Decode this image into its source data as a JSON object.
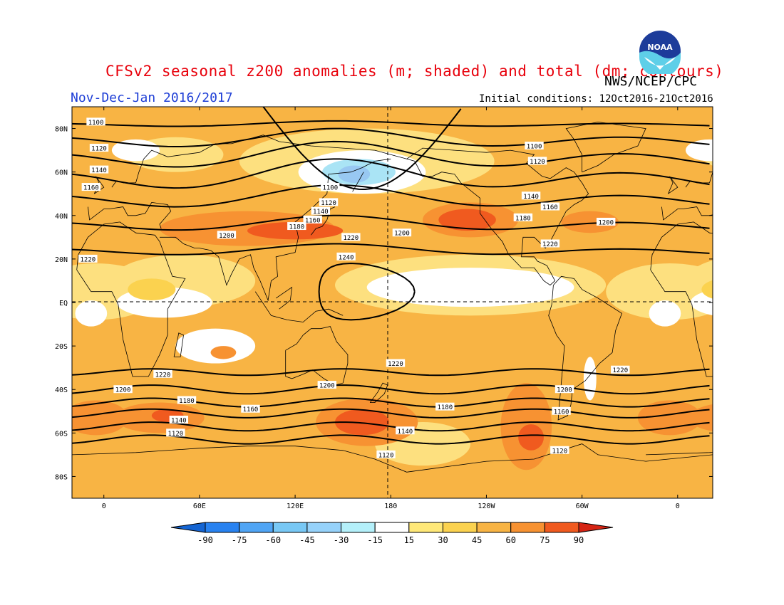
{
  "header": {
    "title": "CFSv2 seasonal z200 anomalies (m; shaded) and total (dm; contours)",
    "agency": "NWS/NCEP/CPC",
    "period": "Nov-Dec-Jan 2016/2017",
    "initial_conditions": "Initial conditions: 12Oct2016-21Oct2016"
  },
  "logo": {
    "text": "NOAA"
  },
  "axes": {
    "lat_ticks": [
      "80N",
      "60N",
      "40N",
      "20N",
      "EQ",
      "20S",
      "40S",
      "60S",
      "80S"
    ],
    "lon_ticks": [
      "0",
      "60E",
      "120E",
      "180",
      "120W",
      "60W",
      "0"
    ]
  },
  "contours": {
    "nh": [
      {
        "value": "1100",
        "lat": 82,
        "amp": 1.5,
        "phase": 0
      },
      {
        "value": "1120",
        "lat": 75,
        "amp": 5,
        "phase": 0
      },
      {
        "value": "1140",
        "lat": 67,
        "amp": 7,
        "phase": 0
      },
      {
        "value": "1160",
        "lat": 58,
        "amp": 8,
        "phase": 0
      },
      {
        "value": "1180",
        "lat": 48,
        "amp": 6,
        "phase": 0
      },
      {
        "value": "1200",
        "lat": 36,
        "amp": 4,
        "phase": 0
      },
      {
        "value": "1220",
        "lat": 24,
        "amp": 3,
        "phase": 0
      }
    ],
    "sh": [
      {
        "value": "1220",
        "lat": -32,
        "amp": 1.5
      },
      {
        "value": "1200",
        "lat": -40,
        "amp": 2
      },
      {
        "value": "1180",
        "lat": -46,
        "amp": 2
      },
      {
        "value": "1160",
        "lat": -51,
        "amp": 2
      },
      {
        "value": "1140",
        "lat": -57,
        "amp": 2
      },
      {
        "value": "1120",
        "lat": -63,
        "amp": 2
      }
    ],
    "closed": [
      {
        "value": "1240",
        "center_lon": 160,
        "center_lat": 5
      }
    ],
    "labels": [
      {
        "text": "1100",
        "lon": -5,
        "lat": 83
      },
      {
        "text": "1120",
        "lon": -3,
        "lat": 71
      },
      {
        "text": "1140",
        "lon": -3,
        "lat": 61
      },
      {
        "text": "1160",
        "lon": -8,
        "lat": 53
      },
      {
        "text": "1220",
        "lon": -10,
        "lat": 20
      },
      {
        "text": "1100",
        "lon": 142,
        "lat": 53
      },
      {
        "text": "1120",
        "lon": 141,
        "lat": 46
      },
      {
        "text": "1140",
        "lon": 136,
        "lat": 42
      },
      {
        "text": "1160",
        "lon": 131,
        "lat": 38
      },
      {
        "text": "1180",
        "lon": 121,
        "lat": 35
      },
      {
        "text": "1200",
        "lon": 77,
        "lat": 31
      },
      {
        "text": "1220",
        "lon": 155,
        "lat": 30
      },
      {
        "text": "1200",
        "lon": 187,
        "lat": 32
      },
      {
        "text": "1240",
        "lon": 152,
        "lat": 21
      },
      {
        "text": "1100",
        "lon": 270,
        "lat": 72
      },
      {
        "text": "1120",
        "lon": 272,
        "lat": 65
      },
      {
        "text": "1140",
        "lon": 268,
        "lat": 49
      },
      {
        "text": "1160",
        "lon": 280,
        "lat": 44
      },
      {
        "text": "1180",
        "lon": 263,
        "lat": 39
      },
      {
        "text": "1200",
        "lon": 315,
        "lat": 37
      },
      {
        "text": "1220",
        "lon": 280,
        "lat": 27
      },
      {
        "text": "1220",
        "lon": 183,
        "lat": -28
      },
      {
        "text": "1220",
        "lon": 324,
        "lat": -31
      },
      {
        "text": "1220",
        "lon": 37,
        "lat": -33
      },
      {
        "text": "1200",
        "lon": 12,
        "lat": -40
      },
      {
        "text": "1200",
        "lon": 140,
        "lat": -38
      },
      {
        "text": "1200",
        "lon": 289,
        "lat": -40
      },
      {
        "text": "1180",
        "lon": 52,
        "lat": -45
      },
      {
        "text": "1180",
        "lon": 214,
        "lat": -48
      },
      {
        "text": "1160",
        "lon": 92,
        "lat": -49
      },
      {
        "text": "1160",
        "lon": 287,
        "lat": -50
      },
      {
        "text": "1140",
        "lon": 47,
        "lat": -54
      },
      {
        "text": "1140",
        "lon": 189,
        "lat": -59
      },
      {
        "text": "1120",
        "lon": 45,
        "lat": -60
      },
      {
        "text": "1120",
        "lon": 177,
        "lat": -70
      },
      {
        "text": "1120",
        "lon": 286,
        "lat": -68
      }
    ]
  },
  "shading": {
    "background": "#f8b444",
    "regions": [
      {
        "level": 15,
        "color": "#fde07f",
        "lon": 50,
        "lat": 10,
        "rx": 45,
        "ry": 12
      },
      {
        "level": 15,
        "color": "#fde07f",
        "lon": 230,
        "lat": 8,
        "rx": 85,
        "ry": 14
      },
      {
        "level": 15,
        "color": "#fde07f",
        "lon": 165,
        "lat": 65,
        "rx": 80,
        "ry": 15
      },
      {
        "level": 15,
        "color": "#fde07f",
        "lon": 355,
        "lat": 5,
        "rx": 40,
        "ry": 13
      },
      {
        "level": 15,
        "color": "#fde07f",
        "lon": 200,
        "lat": -65,
        "rx": 30,
        "ry": 10
      },
      {
        "level": 15,
        "color": "#fde07f",
        "lon": 45,
        "lat": 68,
        "rx": 30,
        "ry": 8
      },
      {
        "level": 0,
        "color": "#ffffff",
        "lon": 38,
        "lat": 0,
        "rx": 30,
        "ry": 7
      },
      {
        "level": 0,
        "color": "#ffffff",
        "lon": 70,
        "lat": -20,
        "rx": 25,
        "ry": 8
      },
      {
        "level": 0,
        "color": "#ffffff",
        "lon": 230,
        "lat": 7,
        "rx": 65,
        "ry": 9
      },
      {
        "level": 0,
        "color": "#ffffff",
        "lon": 162,
        "lat": 60,
        "rx": 40,
        "ry": 10
      },
      {
        "level": 0,
        "color": "#ffffff",
        "lon": 20,
        "lat": 70,
        "rx": 15,
        "ry": 5
      },
      {
        "level": 0,
        "color": "#ffffff",
        "lon": 305,
        "lat": -35,
        "rx": 4,
        "ry": 10
      },
      {
        "level": 0,
        "color": "#ffffff",
        "lon": 352,
        "lat": -5,
        "rx": 10,
        "ry": 6
      },
      {
        "level": -15,
        "color": "#aae4f5",
        "lon": 160,
        "lat": 60,
        "rx": 23,
        "ry": 6
      },
      {
        "level": -30,
        "color": "#98c8f2",
        "lon": 157,
        "lat": 59,
        "rx": 10,
        "ry": 4
      },
      {
        "level": 30,
        "color": "#fbd24f",
        "lon": 30,
        "lat": 6,
        "rx": 15,
        "ry": 5
      },
      {
        "level": 45,
        "color": "#f79232",
        "lon": 90,
        "lat": 34,
        "rx": 55,
        "ry": 8
      },
      {
        "level": 45,
        "color": "#f79232",
        "lon": 230,
        "lat": 38,
        "rx": 30,
        "ry": 8
      },
      {
        "level": 45,
        "color": "#f79232",
        "lon": 305,
        "lat": 37,
        "rx": 18,
        "ry": 5
      },
      {
        "level": 45,
        "color": "#f79232",
        "lon": 35,
        "lat": -53,
        "rx": 28,
        "ry": 7
      },
      {
        "level": 45,
        "color": "#f79232",
        "lon": 165,
        "lat": -55,
        "rx": 32,
        "ry": 11
      },
      {
        "level": 45,
        "color": "#f79232",
        "lon": 265,
        "lat": -57,
        "rx": 16,
        "ry": 20
      },
      {
        "level": 45,
        "color": "#f79232",
        "lon": 355,
        "lat": -53,
        "rx": 20,
        "ry": 8
      },
      {
        "level": 45,
        "color": "#f79232",
        "lon": 75,
        "lat": -23,
        "rx": 8,
        "ry": 3
      },
      {
        "level": 60,
        "color": "#f05a1f",
        "lon": 120,
        "lat": 33,
        "rx": 30,
        "ry": 4
      },
      {
        "level": 60,
        "color": "#f05a1f",
        "lon": 228,
        "lat": 38,
        "rx": 18,
        "ry": 5
      },
      {
        "level": 60,
        "color": "#f05a1f",
        "lon": 162,
        "lat": -55,
        "rx": 17,
        "ry": 6
      },
      {
        "level": 60,
        "color": "#f05a1f",
        "lon": 40,
        "lat": -52,
        "rx": 10,
        "ry": 3
      },
      {
        "level": 60,
        "color": "#f05a1f",
        "lon": 268,
        "lat": -62,
        "rx": 8,
        "ry": 6
      }
    ]
  },
  "colorbar": {
    "levels": [
      "-90",
      "-75",
      "-60",
      "-45",
      "-30",
      "-15",
      "15",
      "30",
      "45",
      "60",
      "75",
      "90"
    ],
    "colors": [
      "#1464d2",
      "#2882f0",
      "#50a5f5",
      "#78c8f5",
      "#96d2fa",
      "#b4f0fa",
      "#ffffff",
      "#ffe878",
      "#fbd24f",
      "#f8b444",
      "#f79232",
      "#f05a1f",
      "#d52414"
    ]
  }
}
